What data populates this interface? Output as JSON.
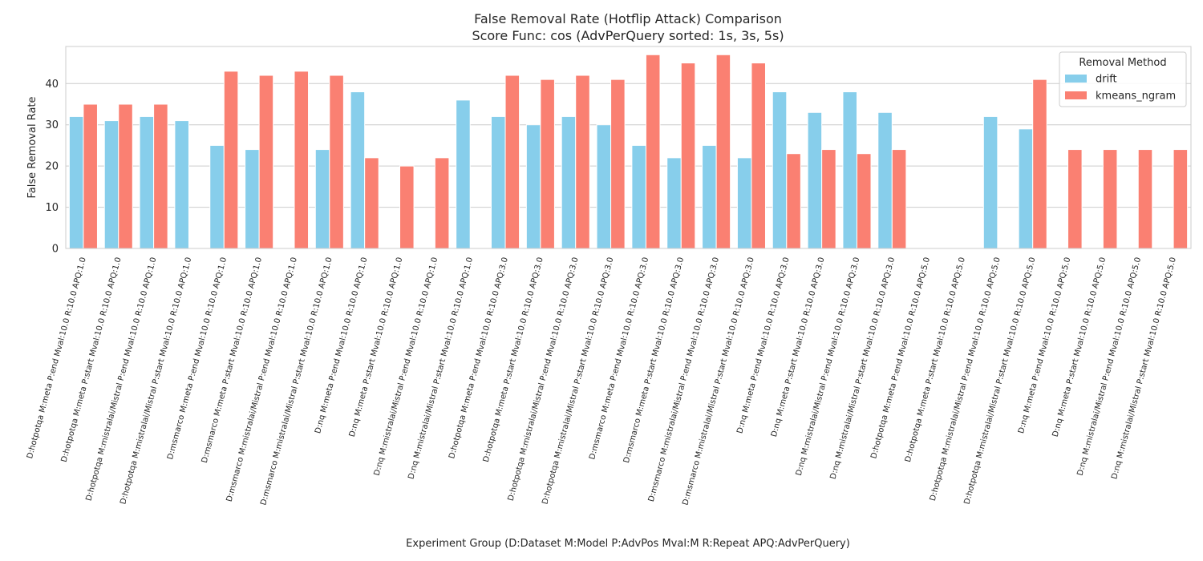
{
  "chart_data": {
    "type": "bar",
    "title": "False Removal Rate (Hotflip Attack) Comparison",
    "subtitle": "Score Func: cos (AdvPerQuery sorted: 1s, 3s, 5s)",
    "xlabel": "Experiment Group (D:Dataset M:Model P:AdvPos Mval:M R:Repeat APQ:AdvPerQuery)",
    "ylabel": "False Removal Rate",
    "ylim": [
      0,
      49
    ],
    "yticks": [
      "0",
      "10",
      "20",
      "30",
      "40"
    ],
    "grid": true,
    "legend": {
      "title": "Removal Method",
      "placement": "top-right"
    },
    "categories": [
      "D:hotpotqa M:meta P:end Mval:10.0 R:10.0 APQ:1.0",
      "D:hotpotqa M:meta P:start Mval:10.0 R:10.0 APQ:1.0",
      "D:hotpotqa M:mistralai/Mistral P:end Mval:10.0 R:10.0 APQ:1.0",
      "D:hotpotqa M:mistralai/Mistral P:start Mval:10.0 R:10.0 APQ:1.0",
      "D:msmarco M:meta P:end Mval:10.0 R:10.0 APQ:1.0",
      "D:msmarco M:meta P:start Mval:10.0 R:10.0 APQ:1.0",
      "D:msmarco M:mistralai/Mistral P:end Mval:10.0 R:10.0 APQ:1.0",
      "D:msmarco M:mistralai/Mistral P:start Mval:10.0 R:10.0 APQ:1.0",
      "D:nq M:meta P:end Mval:10.0 R:10.0 APQ:1.0",
      "D:nq M:meta P:start Mval:10.0 R:10.0 APQ:1.0",
      "D:nq M:mistralai/Mistral P:end Mval:10.0 R:10.0 APQ:1.0",
      "D:nq M:mistralai/Mistral P:start Mval:10.0 R:10.0 APQ:1.0",
      "D:hotpotqa M:meta P:end Mval:10.0 R:10.0 APQ:3.0",
      "D:hotpotqa M:meta P:start Mval:10.0 R:10.0 APQ:3.0",
      "D:hotpotqa M:mistralai/Mistral P:end Mval:10.0 R:10.0 APQ:3.0",
      "D:hotpotqa M:mistralai/Mistral P:start Mval:10.0 R:10.0 APQ:3.0",
      "D:msmarco M:meta P:end Mval:10.0 R:10.0 APQ:3.0",
      "D:msmarco M:meta P:start Mval:10.0 R:10.0 APQ:3.0",
      "D:msmarco M:mistralai/Mistral P:end Mval:10.0 R:10.0 APQ:3.0",
      "D:msmarco M:mistralai/Mistral P:start Mval:10.0 R:10.0 APQ:3.0",
      "D:nq M:meta P:end Mval:10.0 R:10.0 APQ:3.0",
      "D:nq M:meta P:start Mval:10.0 R:10.0 APQ:3.0",
      "D:nq M:mistralai/Mistral P:end Mval:10.0 R:10.0 APQ:3.0",
      "D:nq M:mistralai/Mistral P:start Mval:10.0 R:10.0 APQ:3.0",
      "D:hotpotqa M:meta P:end Mval:10.0 R:10.0 APQ:5.0",
      "D:hotpotqa M:meta P:start Mval:10.0 R:10.0 APQ:5.0",
      "D:hotpotqa M:mistralai/Mistral P:end Mval:10.0 R:10.0 APQ:5.0",
      "D:hotpotqa M:mistralai/Mistral P:start Mval:10.0 R:10.0 APQ:5.0",
      "D:nq M:meta P:end Mval:10.0 R:10.0 APQ:5.0",
      "D:nq M:meta P:start Mval:10.0 R:10.0 APQ:5.0",
      "D:nq M:mistralai/Mistral P:end Mval:10.0 R:10.0 APQ:5.0",
      "D:nq M:mistralai/Mistral P:start Mval:10.0 R:10.0 APQ:5.0"
    ],
    "series": [
      {
        "name": "drift",
        "color": "#87ceeb",
        "values": [
          32,
          31,
          32,
          31,
          25,
          24,
          null,
          24,
          38,
          null,
          null,
          36,
          32,
          30,
          32,
          30,
          25,
          22,
          25,
          22,
          38,
          33,
          38,
          33,
          null,
          null,
          32,
          29,
          null,
          null,
          null,
          null
        ]
      },
      {
        "name": "kmeans_ngram",
        "color": "#fa8072",
        "values": [
          35,
          35,
          35,
          null,
          43,
          42,
          43,
          42,
          22,
          20,
          22,
          null,
          42,
          41,
          42,
          41,
          47,
          45,
          47,
          45,
          23,
          24,
          23,
          24,
          null,
          null,
          null,
          41,
          24,
          24,
          24,
          24
        ]
      }
    ]
  }
}
